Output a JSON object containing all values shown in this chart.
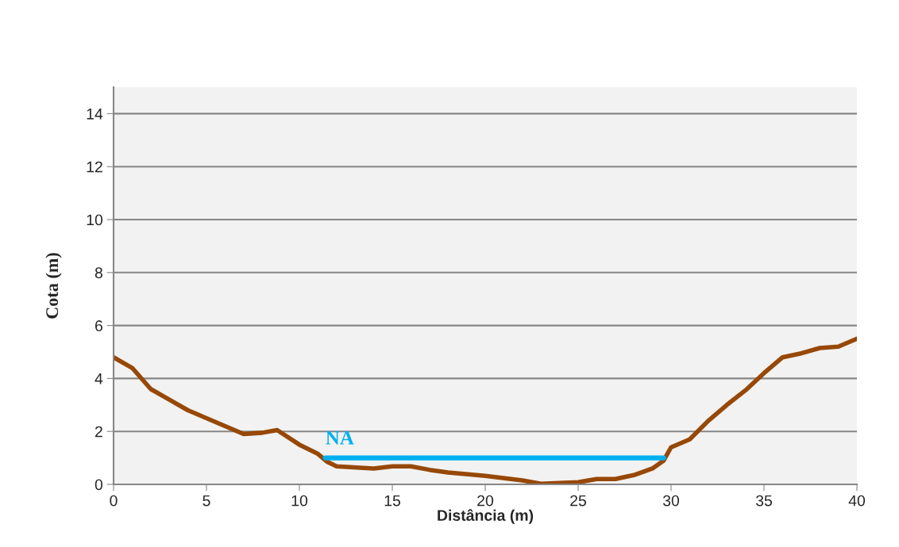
{
  "chart_data": {
    "type": "line",
    "xlabel": "Distância (m)",
    "ylabel": "Cota (m)",
    "xlim": [
      0,
      40
    ],
    "xticks": [
      0,
      5,
      10,
      15,
      20,
      25,
      30,
      35,
      40
    ],
    "ylim": [
      0,
      15
    ],
    "yticks": [
      0,
      2,
      4,
      6,
      8,
      10,
      12,
      14
    ],
    "grid": "y",
    "legend": false,
    "series": [
      {
        "color": "#974806",
        "x": [
          0,
          1,
          2,
          3,
          4,
          5,
          6,
          7,
          8,
          8.8,
          10,
          11,
          11.5,
          12,
          14,
          15,
          16,
          17,
          18,
          20,
          22,
          23,
          24,
          25,
          26,
          27,
          28,
          29,
          29.6,
          30,
          31,
          32,
          33,
          34,
          35,
          36,
          37,
          38,
          39,
          40
        ],
        "values": [
          4.8,
          4.4,
          3.6,
          3.2,
          2.8,
          2.5,
          2.2,
          1.9,
          1.95,
          2.05,
          1.5,
          1.15,
          0.85,
          0.68,
          0.6,
          0.68,
          0.68,
          0.55,
          0.45,
          0.32,
          0.15,
          0.02,
          0.05,
          0.08,
          0.2,
          0.2,
          0.35,
          0.6,
          0.9,
          1.4,
          1.7,
          2.4,
          3.0,
          3.55,
          4.2,
          4.8,
          4.95,
          5.15,
          5.2,
          5.5
        ]
      },
      {
        "name": "NA",
        "color": "#00b0f0",
        "x": [
          11.4,
          29.6
        ],
        "values": [
          1.0,
          1.0
        ]
      }
    ]
  }
}
